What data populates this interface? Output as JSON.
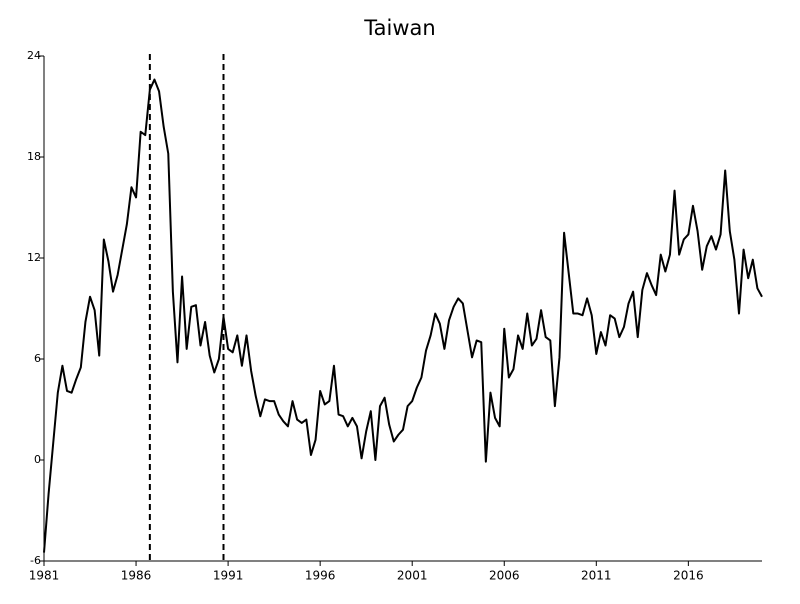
{
  "chart_data": {
    "type": "line",
    "title": "Taiwan",
    "x": [
      1981,
      1981.25,
      1981.5,
      1981.75,
      1982,
      1982.25,
      1982.5,
      1982.75,
      1983,
      1983.25,
      1983.5,
      1983.75,
      1984,
      1984.25,
      1984.5,
      1984.75,
      1985,
      1985.25,
      1985.5,
      1985.75,
      1986,
      1986.25,
      1986.5,
      1986.75,
      1987,
      1987.25,
      1987.5,
      1987.75,
      1988,
      1988.25,
      1988.5,
      1988.75,
      1989,
      1989.25,
      1989.5,
      1989.75,
      1990,
      1990.25,
      1990.5,
      1990.75,
      1991,
      1991.25,
      1991.5,
      1991.75,
      1992,
      1992.25,
      1992.5,
      1992.75,
      1993,
      1993.25,
      1993.5,
      1993.75,
      1994,
      1994.25,
      1994.5,
      1994.75,
      1995,
      1995.25,
      1995.5,
      1995.75,
      1996,
      1996.25,
      1996.5,
      1996.75,
      1997,
      1997.25,
      1997.5,
      1997.75,
      1998,
      1998.25,
      1998.5,
      1998.75,
      1999,
      1999.25,
      1999.5,
      1999.75,
      2000,
      2000.25,
      2000.5,
      2000.75,
      2001,
      2001.25,
      2001.5,
      2001.75,
      2002,
      2002.25,
      2002.5,
      2002.75,
      2003,
      2003.25,
      2003.5,
      2003.75,
      2004,
      2004.25,
      2004.5,
      2004.75,
      2005,
      2005.25,
      2005.5,
      2005.75,
      2006,
      2006.25,
      2006.5,
      2006.75,
      2007,
      2007.25,
      2007.5,
      2007.75,
      2008,
      2008.25,
      2008.5,
      2008.75,
      2009,
      2009.25,
      2009.5,
      2009.75,
      2010,
      2010.25,
      2010.5,
      2010.75,
      2011,
      2011.25,
      2011.5,
      2011.75,
      2012,
      2012.25,
      2012.5,
      2012.75,
      2013,
      2013.25,
      2013.5,
      2013.75,
      2014,
      2014.25,
      2014.5,
      2014.75,
      2015,
      2015.25,
      2015.5,
      2015.75,
      2016,
      2016.25,
      2016.5,
      2016.75,
      2017,
      2017.25,
      2017.5,
      2017.75,
      2018,
      2018.25,
      2018.5,
      2018.75,
      2019,
      2019.25,
      2019.5,
      2019.75,
      2020
    ],
    "series": [
      {
        "color": "#000000",
        "values": [
          -5.5,
          -2,
          1,
          4,
          5.6,
          4.1,
          4,
          4.8,
          5.5,
          8.2,
          9.7,
          8.9,
          6.2,
          13.1,
          11.8,
          10,
          11,
          12.5,
          14,
          16.2,
          15.6,
          19.5,
          19.3,
          22,
          22.6,
          21.9,
          19.8,
          18.2,
          10,
          5.8,
          10.9,
          6.6,
          9.1,
          9.2,
          6.8,
          8.2,
          6.2,
          5.2,
          6,
          8.5,
          6.6,
          6.4,
          7.4,
          5.6,
          7.4,
          5.3,
          3.8,
          2.6,
          3.6,
          3.5,
          3.5,
          2.7,
          2.3,
          2,
          3.5,
          2.4,
          2.2,
          2.4,
          0.3,
          1.2,
          4.1,
          3.3,
          3.5,
          5.6,
          2.7,
          2.6,
          2,
          2.5,
          2,
          0.1,
          1.7,
          2.9,
          0,
          3.2,
          3.7,
          2.1,
          1.1,
          1.5,
          1.8,
          3.2,
          3.5,
          4.3,
          4.9,
          6.5,
          7.4,
          8.7,
          8.1,
          6.6,
          8.3,
          9.1,
          9.6,
          9.3,
          7.7,
          6.1,
          7.1,
          7,
          -0.1,
          4,
          2.5,
          2,
          7.8,
          4.9,
          5.4,
          7.4,
          6.6,
          8.7,
          6.8,
          7.2,
          8.9,
          7.3,
          7.1,
          3.2,
          6.1,
          13.5,
          11.1,
          8.7,
          8.7,
          8.6,
          9.6,
          8.6,
          6.3,
          7.6,
          6.8,
          8.6,
          8.4,
          7.3,
          7.9,
          9.3,
          10,
          7.3,
          10.1,
          11.1,
          10.4,
          9.8,
          12.2,
          11.2,
          12.2,
          16,
          12.2,
          13.1,
          13.4,
          15.1,
          13.6,
          11.3,
          12.7,
          13.3,
          12.5,
          13.4,
          17.2,
          13.6,
          11.9,
          8.7,
          12.5,
          10.8,
          11.9,
          10.2,
          9.7
        ]
      }
    ],
    "xlim": [
      1981,
      2020
    ],
    "xticks": [
      1981,
      1986,
      1991,
      1996,
      2001,
      2006,
      2011,
      2016
    ],
    "ylim": [
      -6,
      24
    ],
    "yticks": [
      -6,
      0,
      6,
      12,
      18,
      24
    ],
    "reference_lines": [
      1986.75,
      1990.75
    ]
  }
}
